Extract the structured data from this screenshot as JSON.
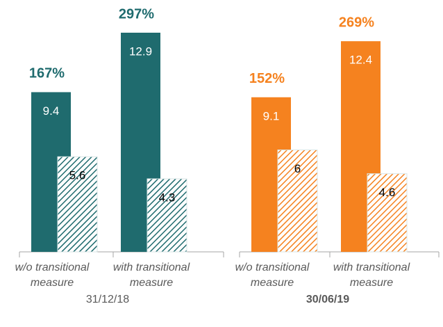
{
  "chart_data": [
    {
      "type": "bar",
      "xlabel": "31/12/18",
      "xlabel_bold": false,
      "categories": [
        "w/o transitional measure",
        "with transitional measure"
      ],
      "annotations": [
        "167%",
        "297%"
      ],
      "series": [
        {
          "color": "#1f6b6e",
          "hatch": false,
          "values": [
            9.4,
            12.9
          ]
        },
        {
          "color": "#1f6b6e",
          "hatch": true,
          "values": [
            5.6,
            4.3
          ]
        }
      ]
    },
    {
      "type": "bar",
      "xlabel": "30/06/19",
      "xlabel_bold": true,
      "categories": [
        "w/o transitional measure",
        "with transitional measure"
      ],
      "annotations": [
        "152%",
        "269%"
      ],
      "series": [
        {
          "color": "#f5821f",
          "hatch": false,
          "values": [
            9.1,
            12.4
          ]
        },
        {
          "color": "#f5821f",
          "hatch": true,
          "values": [
            6.0,
            4.6
          ]
        }
      ]
    }
  ]
}
